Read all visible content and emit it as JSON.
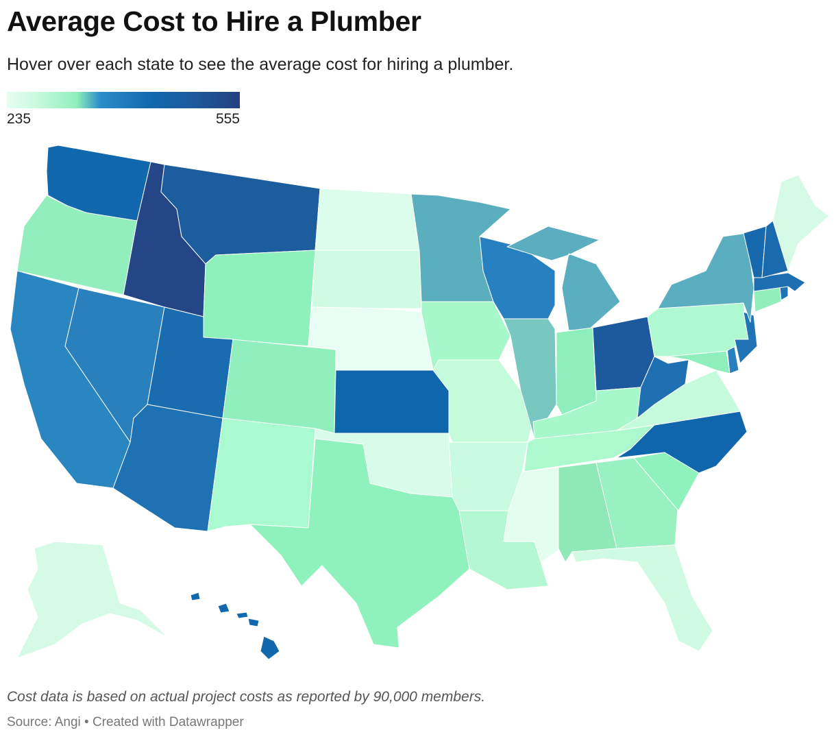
{
  "header": {
    "title": "Average Cost to Hire a Plumber",
    "subtitle": "Hover over each state to see the average cost for hiring a plumber."
  },
  "legend": {
    "min_label": "235",
    "max_label": "555",
    "scale": [
      "#e6fdf2",
      "#ccfae0",
      "#90efbc",
      "#2a8dc8",
      "#1168ad",
      "#1c5a9c",
      "#253f80"
    ]
  },
  "map": {
    "colors": {
      "washington": "#1168ad",
      "oregon": "#92efbd",
      "california": "#2a86c0",
      "nevada": "#2a80bc",
      "idaho": "#244586",
      "montana": "#1c5d9e",
      "wyoming": "#8ef0bb",
      "utah": "#1a6cb0",
      "arizona": "#1e71b3",
      "colorado": "#91efbd",
      "new_mexico": "#aafad0",
      "north_dakota": "#dcfdec",
      "south_dakota": "#cffbe3",
      "nebraska": "#e8fdf3",
      "kansas": "#0f66ad",
      "oklahoma": "#d7fce9",
      "texas": "#8ff2bd",
      "minnesota": "#5aaebe",
      "iowa": "#a6f7c9",
      "missouri": "#c3fbdb",
      "arkansas": "#c9fbe0",
      "louisiana": "#b4f8d3",
      "wisconsin": "#2780bf",
      "illinois": "#78c7c0",
      "michigan": "#5aaec0",
      "indiana": "#8eeebc",
      "ohio": "#1c5a9d",
      "kentucky": "#a6f7c9",
      "tennessee": "#adf9ce",
      "mississippi": "#e3fdef",
      "alabama": "#8ee9b6",
      "georgia": "#99f0c0",
      "florida": "#cefbe1",
      "south_carolina": "#8ff2bd",
      "north_carolina": "#0f66ad",
      "virginia": "#c5fbdc",
      "west_virginia": "#1f70b3",
      "maryland": "#8fefbc",
      "delaware": "#2a80bf",
      "pennsylvania": "#aef9cf",
      "new_jersey": "#2074b5",
      "new_york": "#5aaec0",
      "connecticut": "#92efbd",
      "rhode_island": "#2074b5",
      "massachusetts": "#1e6fb2",
      "vermont": "#1768ad",
      "new_hampshire": "#1a6aae",
      "maine": "#d5fbe6",
      "alaska": "#d5fbe6",
      "hawaii": "#1168ad"
    }
  },
  "footer": {
    "note": "Cost data is based on actual project costs as reported by 90,000 members.",
    "source": "Source: Angi • Created with Datawrapper"
  }
}
